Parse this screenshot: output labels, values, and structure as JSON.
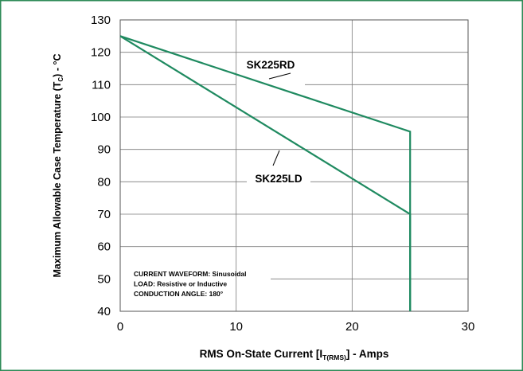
{
  "chart_data": {
    "type": "line",
    "xlabel": {
      "main": "RMS On-State Current [I",
      "sub": "T(RMS)",
      "tail": "] - Amps"
    },
    "ylabel": {
      "main": "Maximum Allowable Case Temperature (T",
      "sub": "C",
      "tail": ") - °C"
    },
    "xlim": [
      0,
      30
    ],
    "ylim": [
      40,
      130
    ],
    "xticks": [
      0,
      10,
      20,
      30
    ],
    "yticks": [
      40,
      50,
      60,
      70,
      80,
      90,
      100,
      110,
      120,
      130
    ],
    "grid": true,
    "line_color": "#1f8a60",
    "frame_color": "#2e8b57",
    "series": [
      {
        "name": "SK225RD",
        "x": [
          0,
          25,
          25
        ],
        "y": [
          125,
          95.5,
          40
        ]
      },
      {
        "name": "SK225LD",
        "x": [
          0,
          25,
          25
        ],
        "y": [
          125,
          70,
          40
        ]
      }
    ],
    "annotations": [
      "CURRENT WAVEFORM: Sinusoidal",
      "LOAD: Resistive or Inductive",
      "CONDUCTION ANGLE: 180°"
    ]
  }
}
